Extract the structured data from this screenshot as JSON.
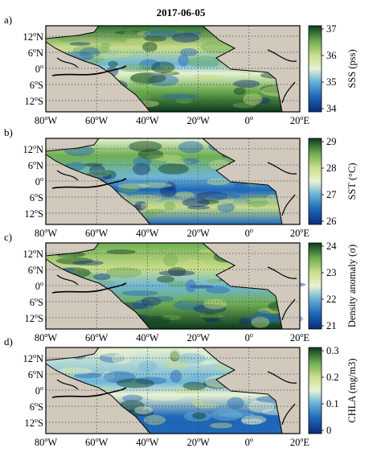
{
  "figure": {
    "title": "2017-06-05",
    "lon_ticks": [
      "80",
      "60",
      "40",
      "20",
      "0",
      "20"
    ],
    "lon_suffix": [
      "W",
      "W",
      "W",
      "W",
      "",
      "E"
    ],
    "lat_ticks": [
      "12",
      "6",
      "0",
      "6",
      "12"
    ],
    "lat_suffix": [
      "N",
      "N",
      "",
      "S",
      "S"
    ],
    "deg": "o",
    "panels": [
      {
        "letter": "a)",
        "cbar_label": "SSS (pss)",
        "cbar_ticks": [
          "37",
          "36",
          "35",
          "34"
        ],
        "colormap": [
          "#f7f3a8",
          "#c9dd8a",
          "#6fae52",
          "#2a6e34",
          "#0b3a1e"
        ],
        "low_colormap": [
          "#0a2c78",
          "#1f67b8",
          "#6fb6d6",
          "#e8f2d2"
        ]
      },
      {
        "letter": "b)",
        "cbar_label": "SST (°C)",
        "cbar_ticks": [
          "29",
          "28",
          "27",
          "26"
        ],
        "colormap": [
          "#0a2c78",
          "#1f67b8",
          "#6fb6d6",
          "#e8f2d2",
          "#c9dd8a",
          "#6fae52",
          "#0b3a1e"
        ]
      },
      {
        "letter": "c)",
        "cbar_label": "Density anomaly (σ)",
        "cbar_ticks": [
          "24",
          "23",
          "22",
          "21"
        ],
        "colormap": [
          "#0a2c78",
          "#1f67b8",
          "#6fb6d6",
          "#e8f2d2",
          "#c9dd8a",
          "#6fae52",
          "#0b3a1e"
        ]
      },
      {
        "letter": "d)",
        "cbar_label": "CHLA (mg/m3)",
        "cbar_ticks": [
          "0.3",
          "0.2",
          "0.1",
          "0"
        ],
        "colormap": [
          "#0a2c78",
          "#1f67b8",
          "#6fb6d6",
          "#e8f2d2",
          "#c9dd8a",
          "#6fae52",
          "#0b3a1e"
        ]
      }
    ],
    "land_color": "#d2c9bd"
  }
}
